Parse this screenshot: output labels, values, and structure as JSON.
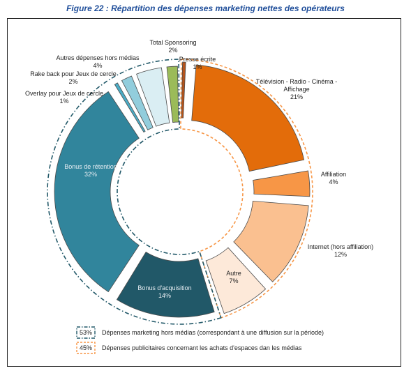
{
  "figure_title": "Figure 22 : Répartition des dépenses marketing nettes des opérateurs",
  "chart_data": {
    "type": "pie",
    "variant": "donut-exploded",
    "title": "Figure 22 : Répartition des dépenses marketing nettes des opérateurs",
    "unit": "%",
    "slices": [
      {
        "label_lines": [
          "Presse écrite"
        ],
        "value_label": "1%",
        "value": 1,
        "color": "#b5531a"
      },
      {
        "label_lines": [
          "Télévision - Radio - Cinéma -",
          "Affichage"
        ],
        "value_label": "21%",
        "value": 21,
        "color": "#e36c0a"
      },
      {
        "label_lines": [
          "Affiliation"
        ],
        "value_label": "4%",
        "value": 4,
        "color": "#f79646"
      },
      {
        "label_lines": [
          "Internet (hors affiliation)"
        ],
        "value_label": "12%",
        "value": 12,
        "color": "#fac090"
      },
      {
        "label_lines": [
          "Autre"
        ],
        "value_label": "7%",
        "value": 7,
        "color": "#fde9d9"
      },
      {
        "label_lines": [
          "Bonus d'acquisition"
        ],
        "value_label": "14%",
        "value": 14,
        "color": "#215868"
      },
      {
        "label_lines": [
          "Bonus de rétention"
        ],
        "value_label": "32%",
        "value": 32,
        "color": "#31859c"
      },
      {
        "label_lines": [
          "Overlay pour Jeux de cercle"
        ],
        "value_label": "1%",
        "value": 1,
        "color": "#4bacc6"
      },
      {
        "label_lines": [
          "Rake back pour Jeux de cercle"
        ],
        "value_label": "2%",
        "value": 2,
        "color": "#92cddc"
      },
      {
        "label_lines": [
          "Autres dépenses hors médias"
        ],
        "value_label": "4%",
        "value": 4,
        "color": "#daeef3"
      },
      {
        "label_lines": [
          "Total Sponsoring"
        ],
        "value_label": "2%",
        "value": 2,
        "color": "#9bbb59"
      }
    ],
    "groups": [
      {
        "box_label": "53%",
        "text": "Dépenses marketing hors médias (correspondant à une diffusion sur la période)",
        "color": "#215868"
      },
      {
        "box_label": "45%",
        "text": "Dépenses publicitaires concernant les achats d'espaces dan les médias",
        "color": "#f79646"
      }
    ]
  }
}
